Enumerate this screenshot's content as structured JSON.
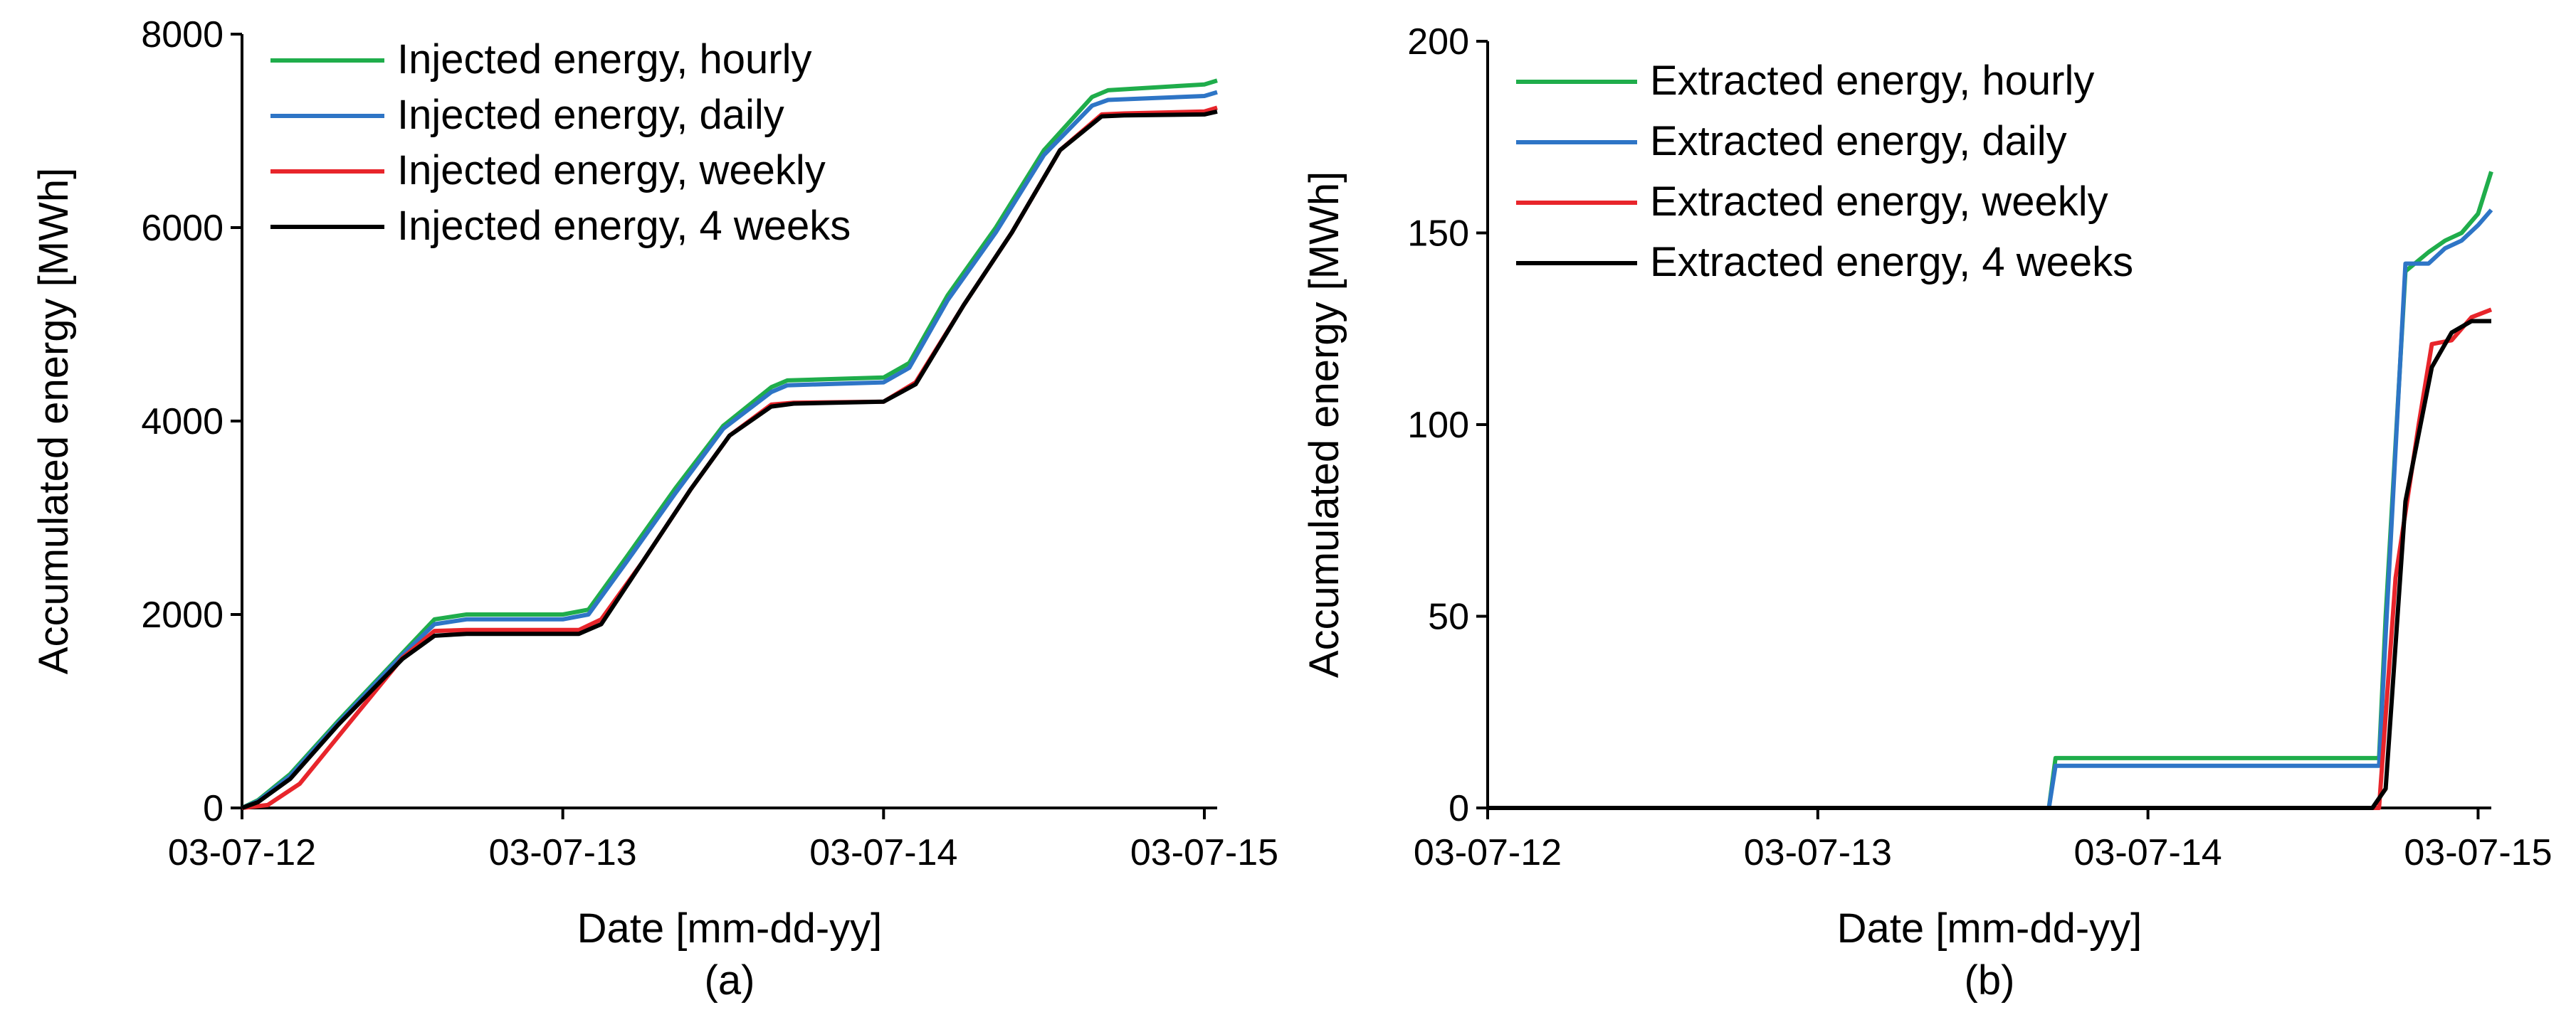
{
  "chart_data": [
    {
      "panel_label": "(a)",
      "type": "line",
      "xlabel": "Date [mm-dd-yy]",
      "ylabel": "Accumulated energy [MWh]",
      "ylim": [
        0,
        8000
      ],
      "yticks": [
        0,
        2000,
        4000,
        6000,
        8000
      ],
      "xlim": [
        0,
        3.04
      ],
      "xticks": [
        0,
        1,
        2,
        3
      ],
      "xtick_labels": [
        "03-07-12",
        "03-07-13",
        "03-07-14",
        "03-07-15"
      ],
      "x_unit": "years since 03-07-12",
      "legend_position": "top-left",
      "series": [
        {
          "name": "Injected energy, hourly",
          "color": "#1fad4b",
          "x": [
            0,
            0.05,
            0.15,
            0.3,
            0.5,
            0.6,
            0.7,
            1.0,
            1.08,
            1.2,
            1.35,
            1.5,
            1.65,
            1.7,
            2.0,
            2.08,
            2.2,
            2.35,
            2.5,
            2.65,
            2.7,
            3.0,
            3.04
          ],
          "values": [
            0,
            80,
            350,
            900,
            1600,
            1950,
            2000,
            2000,
            2050,
            2600,
            3300,
            3950,
            4350,
            4420,
            4450,
            4600,
            5300,
            6000,
            6800,
            7350,
            7420,
            7480,
            7520
          ]
        },
        {
          "name": "Injected energy, daily",
          "color": "#2e75c6",
          "x": [
            0,
            0.05,
            0.15,
            0.3,
            0.5,
            0.6,
            0.7,
            1.0,
            1.08,
            1.2,
            1.35,
            1.5,
            1.65,
            1.7,
            2.0,
            2.08,
            2.2,
            2.35,
            2.5,
            2.65,
            2.7,
            3.0,
            3.04
          ],
          "values": [
            0,
            70,
            330,
            880,
            1580,
            1900,
            1950,
            1950,
            2000,
            2550,
            3250,
            3920,
            4300,
            4370,
            4400,
            4550,
            5250,
            5950,
            6750,
            7260,
            7320,
            7360,
            7400
          ]
        },
        {
          "name": "Injected energy, weekly",
          "color": "#e8252b",
          "x": [
            0,
            0.08,
            0.18,
            0.32,
            0.5,
            0.6,
            0.7,
            1.05,
            1.12,
            1.25,
            1.4,
            1.52,
            1.65,
            1.72,
            2.0,
            2.1,
            2.25,
            2.4,
            2.55,
            2.68,
            2.75,
            3.0,
            3.04
          ],
          "values": [
            0,
            30,
            250,
            820,
            1550,
            1830,
            1840,
            1840,
            1950,
            2550,
            3300,
            3850,
            4170,
            4190,
            4200,
            4400,
            5200,
            5950,
            6800,
            7170,
            7180,
            7200,
            7240
          ]
        },
        {
          "name": "Injected energy, 4 weeks",
          "color": "#000000",
          "x": [
            0,
            0.05,
            0.15,
            0.3,
            0.5,
            0.6,
            0.7,
            1.05,
            1.12,
            1.25,
            1.4,
            1.52,
            1.65,
            1.72,
            2.0,
            2.1,
            2.25,
            2.4,
            2.55,
            2.68,
            2.75,
            3.0,
            3.04
          ],
          "values": [
            0,
            60,
            300,
            860,
            1540,
            1780,
            1800,
            1800,
            1900,
            2550,
            3300,
            3850,
            4150,
            4180,
            4200,
            4380,
            5200,
            5950,
            6800,
            7150,
            7160,
            7170,
            7200
          ]
        }
      ]
    },
    {
      "panel_label": "(b)",
      "type": "line",
      "xlabel": "Date [mm-dd-yy]",
      "ylabel": "Accumulated energy [MWh]",
      "ylim": [
        0,
        200
      ],
      "yticks": [
        0,
        50,
        100,
        150,
        200
      ],
      "xlim": [
        0,
        3.04
      ],
      "xticks": [
        0,
        1,
        2,
        3
      ],
      "xtick_labels": [
        "03-07-12",
        "03-07-13",
        "03-07-14",
        "03-07-15"
      ],
      "x_unit": "years since 03-07-12",
      "legend_position": "top-left",
      "series": [
        {
          "name": "Extracted energy, hourly",
          "color": "#1fad4b",
          "x": [
            0,
            1.7,
            1.72,
            2.7,
            2.72,
            2.78,
            2.85,
            2.9,
            2.95,
            3.0,
            3.04
          ],
          "values": [
            0,
            0,
            13,
            13,
            50,
            140,
            145,
            148,
            150,
            155,
            166
          ]
        },
        {
          "name": "Extracted energy, daily",
          "color": "#2e75c6",
          "x": [
            0,
            1.7,
            1.72,
            2.7,
            2.72,
            2.78,
            2.85,
            2.9,
            2.95,
            3.0,
            3.04
          ],
          "values": [
            0,
            0,
            11,
            11,
            45,
            142,
            142,
            146,
            148,
            152,
            156
          ]
        },
        {
          "name": "Extracted energy, weekly",
          "color": "#e8252b",
          "x": [
            0,
            2.7,
            2.75,
            2.82,
            2.86,
            2.92,
            2.98,
            3.04
          ],
          "values": [
            0,
            0,
            60,
            100,
            121,
            122,
            128,
            130
          ]
        },
        {
          "name": "Extracted energy, 4 weeks",
          "color": "#000000",
          "x": [
            0,
            2.68,
            2.72,
            2.78,
            2.86,
            2.92,
            2.98,
            3.04
          ],
          "values": [
            0,
            0,
            5,
            80,
            115,
            124,
            127,
            127
          ]
        }
      ]
    }
  ]
}
